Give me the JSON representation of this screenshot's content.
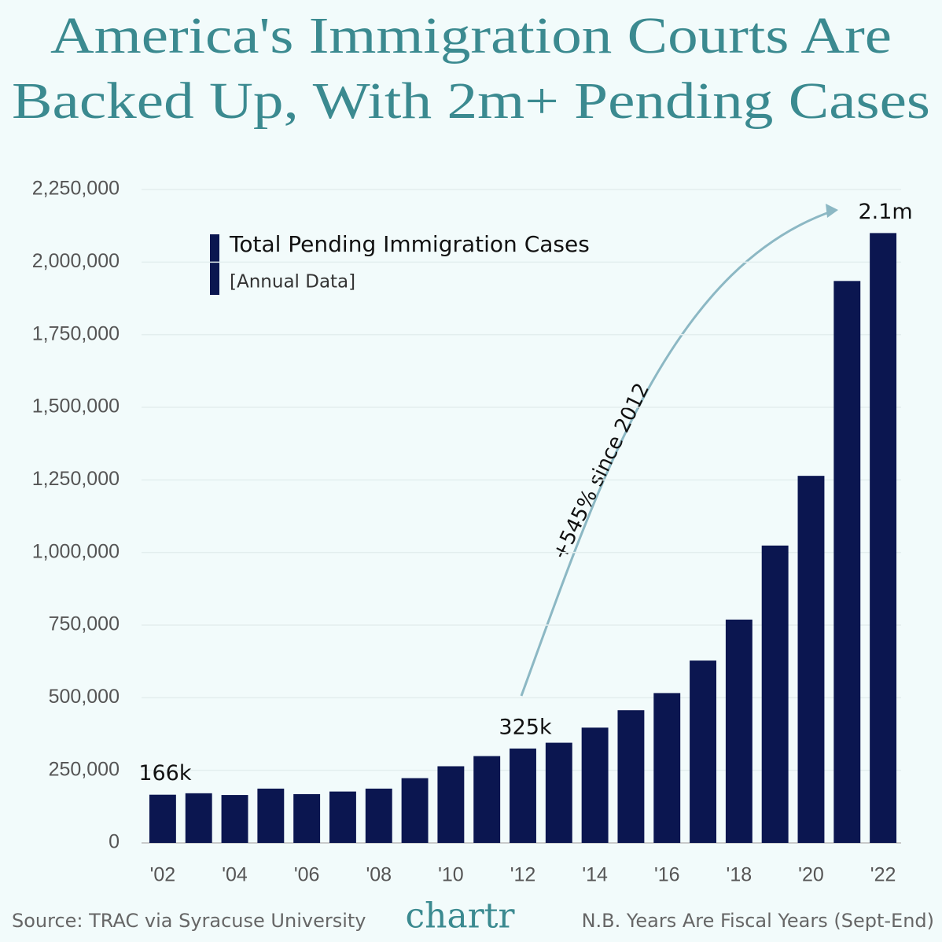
{
  "chart_data": {
    "type": "bar",
    "title": [
      "America's Immigration Courts Are",
      "Backed Up, With 2m+ Pending Cases"
    ],
    "legend": {
      "title": "Total Pending Immigration Cases",
      "subtitle": "[Annual Data]"
    },
    "categories": [
      "'02",
      null,
      "'04",
      null,
      "'06",
      null,
      "'08",
      null,
      "'10",
      null,
      "'12",
      null,
      "'14",
      null,
      "'16",
      null,
      "'18",
      null,
      "'20",
      null,
      "'22"
    ],
    "series": [
      {
        "name": "Total Pending Immigration Cases",
        "color": "#0b1650",
        "values": [
          166000,
          171000,
          165000,
          187000,
          168000,
          177000,
          187000,
          223000,
          264000,
          299000,
          325000,
          345000,
          397000,
          457000,
          516000,
          628000,
          769000,
          1024000,
          1264000,
          1935000,
          2100000
        ],
        "value_labels": [
          "166k",
          null,
          null,
          null,
          null,
          null,
          null,
          null,
          null,
          null,
          "325k",
          null,
          null,
          null,
          null,
          null,
          null,
          null,
          null,
          null,
          "2.1m"
        ]
      }
    ],
    "annotation": "+545% since 2012",
    "ylim": [
      0,
      2250000
    ],
    "yticks": [
      0,
      {
        "value": 250000,
        "label": "250,000"
      },
      {
        "value": 500000,
        "label": "500,000"
      },
      {
        "value": 750000,
        "label": "750,000"
      },
      {
        "value": 1000000,
        "label": "1,000,000"
      },
      {
        "value": 1250000,
        "label": "1,250,000"
      },
      {
        "value": 1500000,
        "label": "1,500,000"
      },
      {
        "value": 1750000,
        "label": "1,750,000"
      },
      {
        "value": 2000000,
        "label": "2,000,000"
      },
      {
        "value": 2250000,
        "label": "2,250,000"
      }
    ],
    "grid": true,
    "source": "Source: TRAC via Syracuse University",
    "brand": "chartr",
    "note": "N.B. Years Are Fiscal Years (Sept-End)"
  }
}
